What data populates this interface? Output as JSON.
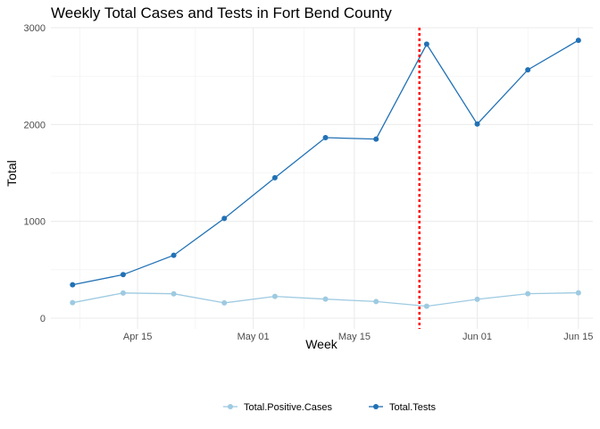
{
  "chart_data": {
    "type": "line",
    "title": "Weekly Total Cases and Tests in Fort Bend County",
    "xlabel": "Week",
    "ylabel": "Total",
    "x_ticks": [
      "Apr 15",
      "May 01",
      "May 15",
      "Jun 01",
      "Jun 15"
    ],
    "y_ticks": [
      "0",
      "1000",
      "2000",
      "3000"
    ],
    "ylim": [
      0,
      3000
    ],
    "x": [
      "2020-04-06",
      "2020-04-13",
      "2020-04-20",
      "2020-04-27",
      "2020-05-04",
      "2020-05-11",
      "2020-05-18",
      "2020-05-25",
      "2020-06-01",
      "2020-06-08",
      "2020-06-15"
    ],
    "series": [
      {
        "name": "Total.Positive.Cases",
        "color": "#9ecae1",
        "values": [
          160,
          260,
          252,
          158,
          225,
          197,
          172,
          124,
          195,
          253,
          262
        ]
      },
      {
        "name": "Total.Tests",
        "color": "#2171b5",
        "values": [
          345,
          450,
          650,
          1030,
          1450,
          1865,
          1850,
          2830,
          2005,
          2565,
          2870
        ]
      }
    ],
    "vline": {
      "x": "2020-05-24",
      "color": "#ff0000",
      "style": "dotted"
    },
    "grid": true,
    "legend_position": "bottom"
  }
}
